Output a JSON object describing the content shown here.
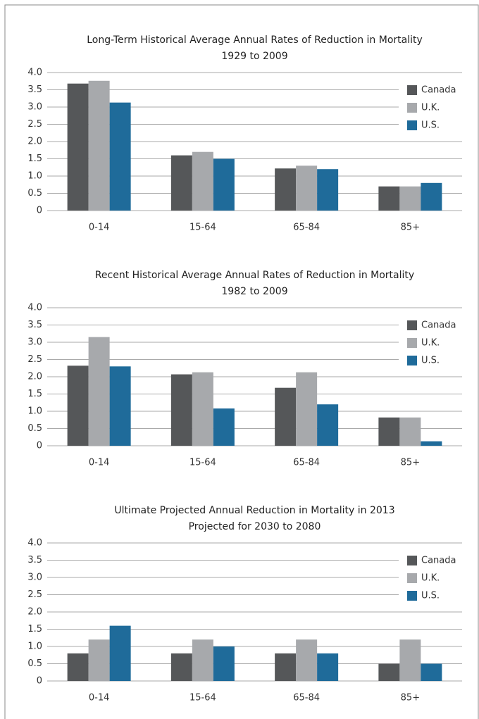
{
  "chart_data": [
    {
      "type": "bar",
      "title": "Long-Term Historical Average Annual Rates of Reduction in Mortality",
      "subtitle": "1929 to 2009",
      "categories": [
        "0-14",
        "15-64",
        "65-84",
        "85+"
      ],
      "series": [
        {
          "name": "Canada",
          "color": "#555759",
          "values": [
            3.68,
            1.6,
            1.22,
            0.7
          ]
        },
        {
          "name": "U.K.",
          "color": "#a7a9ac",
          "values": [
            3.76,
            1.7,
            1.3,
            0.7
          ]
        },
        {
          "name": "U.S.",
          "color": "#1f6b9a",
          "values": [
            3.13,
            1.5,
            1.2,
            0.8
          ]
        }
      ],
      "ylim": [
        0,
        4
      ],
      "yticks": [
        0,
        0.5,
        {
          "value": 1,
          "label": "1.0"
        },
        1.5,
        {
          "value": 2,
          "label": "2.0"
        },
        2.5,
        {
          "value": 3,
          "label": "3.0"
        },
        3.5,
        {
          "value": 4,
          "label": "4.0"
        }
      ],
      "grid": true,
      "legend": "upper right"
    },
    {
      "type": "bar",
      "title": "Recent Historical Average Annual Rates of Reduction in Mortality",
      "subtitle": "1982 to 2009",
      "categories": [
        "0-14",
        "15-64",
        "65-84",
        "85+"
      ],
      "series": [
        {
          "name": "Canada",
          "color": "#555759",
          "values": [
            2.32,
            2.07,
            1.68,
            0.82
          ]
        },
        {
          "name": "U.K.",
          "color": "#a7a9ac",
          "values": [
            3.15,
            2.13,
            2.13,
            0.82
          ]
        },
        {
          "name": "U.S.",
          "color": "#1f6b9a",
          "values": [
            2.3,
            1.08,
            1.2,
            0.13
          ]
        }
      ],
      "ylim": [
        0,
        4
      ],
      "yticks": [
        0,
        0.5,
        {
          "value": 1,
          "label": "1.0"
        },
        1.5,
        {
          "value": 2,
          "label": "2.0"
        },
        2.5,
        {
          "value": 3,
          "label": "3.0"
        },
        3.5,
        {
          "value": 4,
          "label": "4.0"
        }
      ],
      "grid": true,
      "legend": "upper right"
    },
    {
      "type": "bar",
      "title": "Ultimate Projected Annual Reduction in Mortality in 2013",
      "subtitle": "Projected for 2030 to 2080",
      "categories": [
        "0-14",
        "15-64",
        "65-84",
        "85+"
      ],
      "series": [
        {
          "name": "Canada",
          "color": "#555759",
          "values": [
            0.8,
            0.8,
            0.8,
            0.5
          ]
        },
        {
          "name": "U.K.",
          "color": "#a7a9ac",
          "values": [
            1.2,
            1.2,
            1.2,
            1.2
          ]
        },
        {
          "name": "U.S.",
          "color": "#1f6b9a",
          "values": [
            1.6,
            1.0,
            0.8,
            0.5
          ]
        }
      ],
      "ylim": [
        0,
        4
      ],
      "yticks": [
        0,
        0.5,
        {
          "value": 1,
          "label": "1.0"
        },
        1.5,
        {
          "value": 2,
          "label": "2.0"
        },
        2.5,
        {
          "value": 3,
          "label": "3.0"
        },
        3.5,
        {
          "value": 4,
          "label": "4.0"
        }
      ],
      "grid": true,
      "legend": "upper right"
    }
  ]
}
